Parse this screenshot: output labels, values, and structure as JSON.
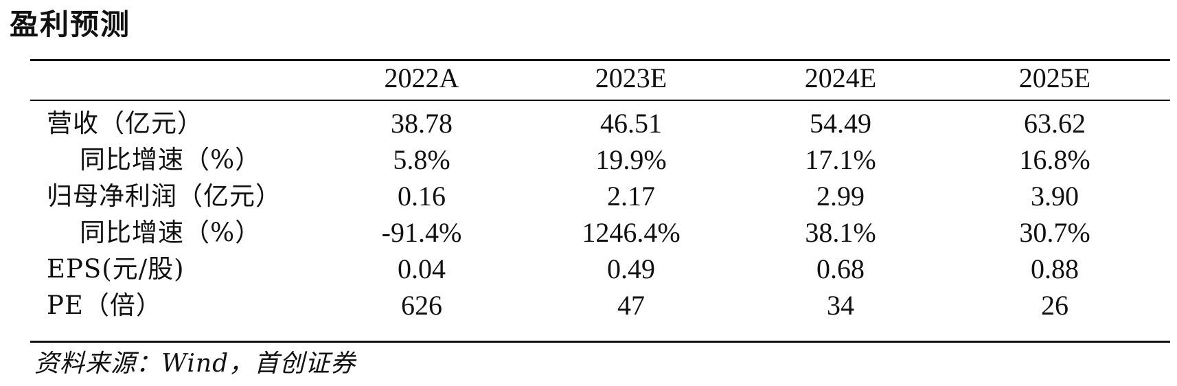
{
  "title": "盈利预测",
  "table": {
    "header": [
      "2022A",
      "2023E",
      "2024E",
      "2025E"
    ],
    "rows": [
      {
        "label": "营收（亿元）",
        "values": [
          "38.78",
          "46.51",
          "54.49",
          "63.62"
        ]
      },
      {
        "label": "同比增速（%）",
        "values": [
          "5.8%",
          "19.9%",
          "17.1%",
          "16.8%"
        ]
      },
      {
        "label": "归母净利润（亿元）",
        "values": [
          "0.16",
          "2.17",
          "2.99",
          "3.90"
        ]
      },
      {
        "label": "同比增速（%）",
        "values": [
          "-91.4%",
          "1246.4%",
          "38.1%",
          "30.7%"
        ]
      },
      {
        "label": "EPS(元/股)",
        "values": [
          "0.04",
          "0.49",
          "0.68",
          "0.88"
        ]
      },
      {
        "label": "PE（倍）",
        "values": [
          "626",
          "47",
          "34",
          "26"
        ]
      }
    ]
  },
  "source": "资料来源：Wind，首创证券"
}
